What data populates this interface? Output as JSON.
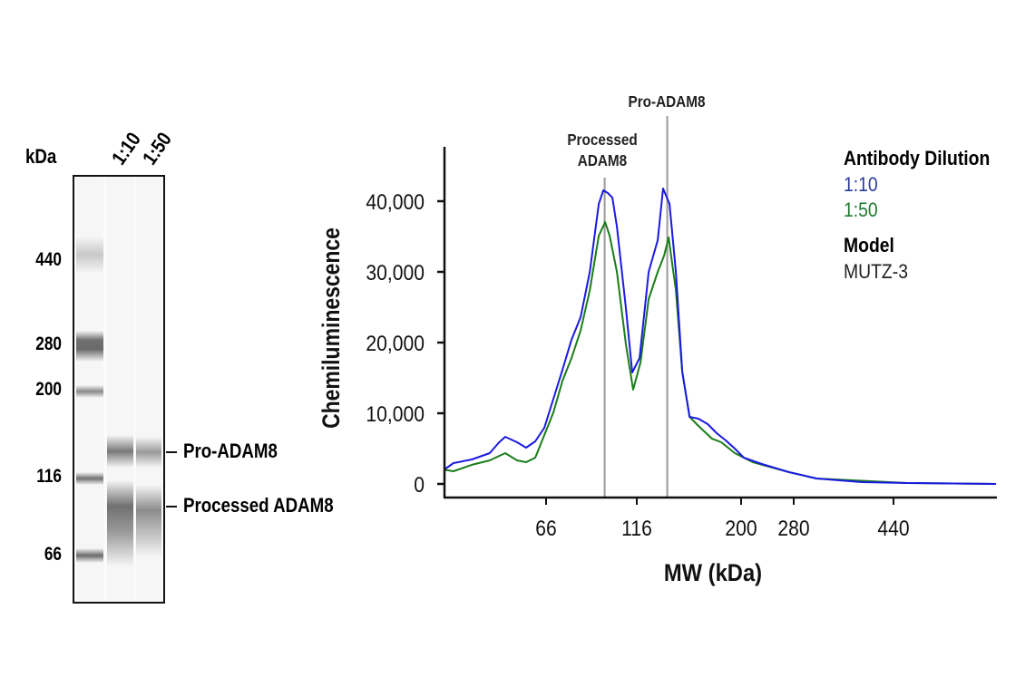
{
  "blot": {
    "unit_label": "kDa",
    "lane_labels": [
      "1:10",
      "1:50"
    ],
    "ladder": [
      "440",
      "280",
      "200",
      "116",
      "66"
    ],
    "band_labels": [
      "Pro-ADAM8",
      "Processed ADAM8"
    ]
  },
  "chart_data": {
    "type": "line",
    "xlabel": "MW (kDa)",
    "ylabel": "Chemiluminescence",
    "x_ticks": [
      "66",
      "116",
      "200",
      "280",
      "440"
    ],
    "y_ticks": [
      "0",
      "10,000",
      "20,000",
      "30,000",
      "40,000"
    ],
    "ylim": [
      0,
      48000
    ],
    "xlim": [
      35,
      700
    ],
    "grid": false,
    "reference_lines": [
      {
        "label": "Processed ADAM8",
        "label_lines": [
          "Processed",
          "ADAM8"
        ],
        "x": 95
      },
      {
        "label": "Pro-ADAM8",
        "label_lines": [
          "Pro-ADAM8"
        ],
        "x": 136
      }
    ],
    "legend": {
      "title": "Antibody Dilution",
      "model_title": "Model",
      "model_value": "MUTZ-3",
      "placement": "right"
    },
    "series": [
      {
        "name": "1:10",
        "color": "#1a1ae0",
        "x": [
          35.1,
          37.1,
          41.6,
          46.5,
          49.3,
          51.2,
          55.1,
          58.3,
          61.7,
          65.3,
          69.1,
          73.1,
          77.3,
          81.8,
          86.6,
          91.6,
          94.2,
          96.9,
          99.7,
          102.5,
          108.4,
          112.8,
          117.7,
          123.4,
          129.4,
          133.1,
          137.6,
          142.3,
          147.1,
          152.8,
          160.1,
          168.0,
          176.1,
          184.6,
          193.6,
          203.4,
          228.4,
          271.8,
          310.5,
          381,
          468.5,
          700
        ],
        "y": [
          2050,
          2950,
          3460,
          4360,
          5900,
          6670,
          5900,
          5130,
          6030,
          7950,
          12050,
          16150,
          20380,
          23600,
          30000,
          39600,
          41540,
          41150,
          40500,
          36400,
          24870,
          15770,
          17820,
          30000,
          34490,
          41800,
          39600,
          30000,
          15900,
          9490,
          9230,
          8460,
          7180,
          6150,
          5000,
          3720,
          2820,
          1670,
          770,
          260,
          130,
          0
        ]
      },
      {
        "name": "1:50",
        "color": "#1a7d1a",
        "x": [
          35.1,
          37.1,
          41.6,
          46.5,
          51.2,
          55.1,
          58.3,
          61.7,
          65.3,
          69.1,
          73.1,
          77.3,
          81.8,
          86.6,
          91.6,
          95.3,
          98.0,
          102.5,
          108.4,
          113.4,
          118.3,
          123.4,
          129.4,
          133.8,
          137.0,
          142.3,
          147.1,
          152.8,
          160.1,
          171.9,
          180.3,
          193.6,
          215.5,
          271.8,
          310.5,
          468.5,
          700
        ],
        "y": [
          2000,
          1800,
          2700,
          3330,
          4360,
          3330,
          3080,
          3720,
          6920,
          10130,
          14600,
          17800,
          21700,
          27400,
          35100,
          37050,
          35100,
          30000,
          19740,
          13330,
          17180,
          26150,
          30000,
          32300,
          34870,
          27400,
          15900,
          9490,
          8200,
          6400,
          5900,
          4360,
          3080,
          1670,
          770,
          130,
          0
        ]
      }
    ]
  }
}
